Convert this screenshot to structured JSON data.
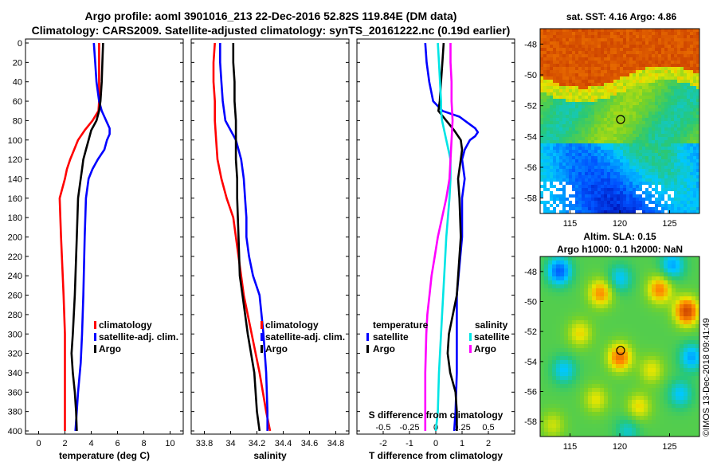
{
  "title": {
    "line1": "Argo profile: aoml 3901016_213 22-Dec-2016 52.82S 119.84E (DM data)",
    "line2": "Climatology: CARS2009. Satellite-adjusted climatology: synTS_20161222.nc (0.19d earlier)"
  },
  "depth_ticks": [
    "0",
    "20",
    "40",
    "60",
    "80",
    "100",
    "120",
    "140",
    "160",
    "180",
    "200",
    "220",
    "240",
    "260",
    "280",
    "300",
    "320",
    "340",
    "360",
    "380",
    "400"
  ],
  "chart_data": [
    {
      "type": "line",
      "id": "temperature",
      "xlabel": "temperature (deg C)",
      "xlim": [
        -1,
        11
      ],
      "ylim": [
        400,
        0
      ],
      "xticks": [
        "0",
        "2",
        "4",
        "6",
        "8",
        "10"
      ],
      "legend": [
        "climatology",
        "satellite-adj. clim.",
        "Argo"
      ],
      "series": [
        {
          "name": "climatology",
          "color": "#ff0000",
          "depth": [
            0,
            20,
            40,
            60,
            70,
            80,
            90,
            100,
            110,
            120,
            130,
            140,
            160,
            200,
            260,
            300,
            340,
            380,
            400
          ],
          "values": [
            4.6,
            4.6,
            4.6,
            4.6,
            4.55,
            4.1,
            3.5,
            3.0,
            2.7,
            2.4,
            2.15,
            2.0,
            1.6,
            1.7,
            1.9,
            2.0,
            2.0,
            2.0,
            2.0
          ]
        },
        {
          "name": "satellite-adj. clim.",
          "color": "#0000ff",
          "depth": [
            0,
            20,
            40,
            60,
            70,
            76,
            82,
            88,
            94,
            100,
            110,
            120,
            130,
            140,
            160,
            200,
            260,
            300,
            330,
            360,
            400
          ],
          "values": [
            4.2,
            4.3,
            4.4,
            4.6,
            4.8,
            5.0,
            5.2,
            5.4,
            5.4,
            5.2,
            5.0,
            4.5,
            4.1,
            3.8,
            3.6,
            3.5,
            3.4,
            3.3,
            3.2,
            3.0,
            2.8
          ]
        },
        {
          "name": "Argo",
          "color": "#000000",
          "depth": [
            0,
            20,
            40,
            60,
            70,
            80,
            90,
            100,
            110,
            120,
            130,
            140,
            160,
            200,
            260,
            300,
            320,
            340,
            360,
            380,
            400
          ],
          "values": [
            4.9,
            4.85,
            4.8,
            4.7,
            4.6,
            4.4,
            4.0,
            3.8,
            3.6,
            3.4,
            3.3,
            3.2,
            3.0,
            2.9,
            2.75,
            2.6,
            2.5,
            2.6,
            2.75,
            2.85,
            2.9
          ]
        }
      ]
    },
    {
      "type": "line",
      "id": "salinity",
      "xlabel": "salinity",
      "xlim": [
        33.7,
        34.9
      ],
      "ylim": [
        400,
        0
      ],
      "xticks": [
        "33.8",
        "34",
        "34.2",
        "34.4",
        "34.6",
        "34.8"
      ],
      "legend": [
        "climatology",
        "satellite-adj. clim.",
        "Argo"
      ],
      "series": [
        {
          "name": "climatology",
          "color": "#ff0000",
          "depth": [
            0,
            20,
            40,
            60,
            80,
            100,
            120,
            140,
            160,
            180,
            200,
            220,
            260,
            300,
            340,
            380,
            400
          ],
          "values": [
            33.88,
            33.87,
            33.87,
            33.88,
            33.88,
            33.89,
            33.9,
            33.93,
            33.97,
            34.02,
            34.04,
            34.06,
            34.1,
            34.16,
            34.22,
            34.27,
            34.3
          ]
        },
        {
          "name": "satellite-adj. clim.",
          "color": "#0000ff",
          "depth": [
            0,
            20,
            40,
            60,
            80,
            90,
            100,
            110,
            120,
            140,
            160,
            180,
            200,
            220,
            240,
            260,
            300,
            340,
            380,
            400
          ],
          "values": [
            33.92,
            33.92,
            33.93,
            33.94,
            33.96,
            34.0,
            34.04,
            34.06,
            34.08,
            34.1,
            34.11,
            34.12,
            34.12,
            34.14,
            34.17,
            34.22,
            34.25,
            34.27,
            34.28,
            34.28
          ]
        },
        {
          "name": "Argo",
          "color": "#000000",
          "depth": [
            0,
            20,
            40,
            60,
            80,
            100,
            120,
            140,
            160,
            200,
            240,
            260,
            300,
            340,
            380,
            400
          ],
          "values": [
            34.02,
            34.02,
            34.03,
            34.03,
            34.04,
            34.04,
            34.04,
            34.05,
            34.05,
            34.06,
            34.07,
            34.09,
            34.13,
            34.18,
            34.2,
            34.22
          ]
        }
      ]
    },
    {
      "type": "line",
      "id": "difference",
      "xlabel": "T difference from climatology",
      "xlabel2": "S difference from climatology",
      "xlim": [
        -3,
        3
      ],
      "xlim_s": [
        -0.75,
        0.75
      ],
      "ylim": [
        400,
        0
      ],
      "xticks": [
        "-2",
        "-1",
        "0",
        "1",
        "2"
      ],
      "xticks2": [
        "-0.5",
        "-0.25",
        "0",
        "0.25",
        "0.5"
      ],
      "legend_titles": [
        "temperature",
        "salinity"
      ],
      "legend_left": [
        "satellite",
        "Argo"
      ],
      "legend_right": [
        "satellite",
        "Argo"
      ],
      "series": [
        {
          "name": "T satellite",
          "color": "#0000ff",
          "axis": "T",
          "depth": [
            0,
            20,
            40,
            60,
            70,
            76,
            82,
            88,
            92,
            96,
            100,
            110,
            120,
            140,
            160,
            200,
            260,
            300,
            340,
            380,
            400
          ],
          "values": [
            -0.4,
            -0.35,
            -0.25,
            -0.1,
            0.25,
            0.9,
            1.2,
            1.5,
            1.6,
            1.5,
            1.3,
            1.1,
            1.0,
            1.1,
            1.0,
            1.0,
            0.8,
            0.8,
            0.8,
            0.75,
            0.7
          ]
        },
        {
          "name": "T Argo",
          "color": "#000000",
          "axis": "T",
          "depth": [
            0,
            20,
            40,
            60,
            70,
            80,
            90,
            100,
            110,
            120,
            130,
            140,
            160,
            200,
            260,
            300,
            320,
            340,
            360,
            380,
            400
          ],
          "values": [
            0.3,
            0.25,
            0.2,
            0.15,
            0.1,
            0.4,
            0.7,
            0.95,
            1.0,
            0.95,
            0.9,
            0.85,
            0.9,
            0.95,
            0.8,
            0.5,
            0.45,
            0.55,
            0.75,
            0.8,
            0.8
          ]
        },
        {
          "name": "S satellite",
          "color": "#00e5e5",
          "axis": "S",
          "depth": [
            0,
            20,
            40,
            60,
            70,
            80,
            100,
            120,
            140,
            160,
            200,
            240,
            300,
            340,
            380,
            400
          ],
          "values": [
            0.02,
            0.03,
            0.04,
            0.05,
            0.05,
            0.06,
            0.1,
            0.14,
            0.14,
            0.13,
            0.1,
            0.08,
            0.05,
            0.03,
            0.02,
            0.0
          ]
        },
        {
          "name": "S Argo",
          "color": "#ff00ff",
          "axis": "S",
          "depth": [
            0,
            20,
            40,
            60,
            80,
            100,
            120,
            140,
            160,
            180,
            200,
            220,
            240,
            260,
            280,
            300,
            340,
            380,
            400
          ],
          "values": [
            0.14,
            0.14,
            0.15,
            0.15,
            0.16,
            0.15,
            0.14,
            0.13,
            0.1,
            0.06,
            0.02,
            -0.01,
            -0.04,
            -0.06,
            -0.08,
            -0.09,
            -0.1,
            -0.1,
            -0.1
          ]
        }
      ]
    }
  ],
  "maps": [
    {
      "id": "sst-map",
      "title": "sat. SST: 4.16 Argo: 4.86",
      "subtitle": "",
      "yticks": [
        "-48",
        "-50",
        "-52",
        "-54",
        "-56",
        "-58"
      ],
      "xticks": [
        "115",
        "120",
        "125"
      ]
    },
    {
      "id": "sla-map",
      "title": "Altim. SLA: 0.15",
      "subtitle": "Argo h1000: 0.1 h2000: NaN",
      "yticks": [
        "-48",
        "-50",
        "-52",
        "-54",
        "-56",
        "-58"
      ],
      "xticks": [
        "115",
        "120",
        "125"
      ]
    }
  ],
  "watermark": "©IMOS 13-Dec-2018 09:41:49",
  "colors": {
    "red": "#ff0000",
    "blue": "#0000ff",
    "black": "#000000",
    "cyan": "#00e5e5",
    "magenta": "#ff00ff"
  }
}
